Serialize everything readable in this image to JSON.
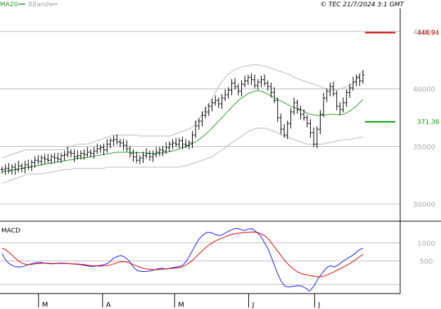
{
  "chart_data": [
    {
      "type": "ohlc",
      "source_label": "© TEC 21/7/2024 3:1 GMT",
      "legend": [
        {
          "label": "MA20",
          "color": "#2a9d2a"
        },
        {
          "label": "BBands",
          "color": "#aaaaaa"
        }
      ],
      "y_ticks": [
        "30000",
        "35000",
        "40000",
        "45000"
      ],
      "y_tick_values": [
        300,
        350,
        400,
        450
      ],
      "ylim": [
        285,
        470
      ],
      "levels": [
        {
          "label": "448.94",
          "value": 448.94,
          "color": "#cc0000"
        },
        {
          "label": "371.36",
          "value": 371.36,
          "color": "#009900"
        }
      ],
      "x_ticks": [
        "M",
        "A",
        "M",
        "J",
        "J"
      ],
      "x_tick_positions": [
        0.105,
        0.265,
        0.445,
        0.63,
        0.795
      ],
      "close": [
        330,
        331,
        329,
        332,
        330,
        333,
        331,
        334,
        332,
        336,
        338,
        337,
        340,
        339,
        338,
        341,
        340,
        339,
        342,
        343,
        345,
        344,
        341,
        342,
        344,
        343,
        345,
        344,
        346,
        348,
        349,
        347,
        352,
        355,
        356,
        354,
        353,
        351,
        348,
        344,
        341,
        338,
        340,
        342,
        344,
        341,
        343,
        345,
        347,
        346,
        349,
        352,
        353,
        352,
        355,
        352,
        351,
        353,
        360,
        368,
        372,
        377,
        380,
        385,
        388,
        390,
        387,
        392,
        395,
        399,
        405,
        402,
        398,
        404,
        407,
        410,
        408,
        403,
        406,
        408,
        405,
        402,
        397,
        390,
        375,
        365,
        360,
        370,
        380,
        388,
        382,
        378,
        375,
        370,
        362,
        352,
        365,
        378,
        392,
        398,
        402,
        396,
        385,
        382,
        388,
        397,
        401,
        406,
        410,
        407,
        412
      ],
      "ma20": [
        328,
        328.5,
        329,
        329.5,
        330,
        330.5,
        331,
        331.5,
        332,
        332.5,
        333,
        333.5,
        334,
        334.5,
        335,
        335.5,
        336,
        336.5,
        337,
        337.5,
        338,
        338.5,
        339,
        339.5,
        340,
        340,
        340.5,
        341,
        341.5,
        342,
        342.5,
        343,
        343.5,
        344,
        344.5,
        345,
        345,
        345,
        345,
        345,
        345,
        344.5,
        344.5,
        344.5,
        344,
        344,
        344,
        344,
        344,
        344.5,
        345,
        345.5,
        346,
        347,
        348,
        349,
        350,
        351,
        352.5,
        354,
        356,
        358,
        360.5,
        363,
        366,
        369,
        372,
        375,
        378,
        381,
        384,
        387,
        390,
        392,
        394,
        396,
        397,
        398,
        398.5,
        398,
        397,
        395.5,
        394,
        392.5,
        391,
        389.5,
        388,
        386.5,
        385,
        384,
        383,
        382,
        380.5,
        379,
        378,
        377.5,
        377,
        377,
        377,
        377.5,
        378,
        378,
        377.5,
        377.5,
        378,
        379,
        381,
        383,
        385,
        388,
        391
      ],
      "bb_upper": [
        340,
        341,
        342,
        343,
        344,
        345,
        346,
        347,
        347,
        347,
        347,
        347,
        347,
        347,
        347,
        347,
        347,
        347,
        347,
        348,
        349,
        350,
        351,
        352,
        352,
        352,
        352,
        353,
        354,
        355,
        356,
        357,
        358,
        359,
        360,
        360,
        360,
        360,
        360,
        360,
        360,
        360,
        359,
        359,
        359,
        359,
        359,
        359,
        359,
        359,
        359,
        359,
        360,
        361,
        362,
        363,
        364,
        365,
        367,
        370,
        374,
        378,
        382,
        387,
        392,
        397,
        402,
        406,
        410,
        413,
        415,
        417,
        418,
        419,
        420,
        420,
        421,
        421,
        421,
        420,
        420,
        419,
        418,
        417,
        416,
        415,
        414,
        413,
        412,
        410,
        409,
        408,
        407,
        406,
        405,
        404,
        403,
        402,
        401,
        400,
        400,
        399,
        399,
        400,
        401,
        402,
        403,
        405,
        408,
        412,
        416
      ],
      "bb_lower": [
        318,
        319,
        320,
        321,
        322,
        323,
        324,
        325,
        326,
        326,
        326,
        326,
        326,
        327,
        327,
        328,
        328,
        329,
        329,
        330,
        330,
        330,
        331,
        331,
        331,
        331,
        331,
        331,
        331,
        331,
        331,
        331,
        332,
        332,
        332,
        332,
        332,
        332,
        332,
        332,
        332,
        332,
        332,
        332,
        332,
        332,
        332,
        332,
        332,
        332,
        332,
        332,
        332,
        332,
        332,
        333,
        333,
        334,
        335,
        336,
        337,
        338,
        339,
        340,
        341,
        343,
        345,
        347,
        349,
        351,
        353,
        355,
        357,
        359,
        361,
        363,
        364,
        365,
        366,
        366,
        366,
        365,
        364,
        363,
        362,
        360,
        359,
        358,
        357,
        356,
        355,
        354,
        353,
        352,
        352,
        352,
        352,
        352,
        352,
        353,
        353,
        354,
        355,
        355,
        356,
        356,
        356,
        357,
        357,
        358,
        358
      ]
    },
    {
      "type": "line",
      "title": "MACD",
      "y_ticks": [
        "500",
        "1000"
      ],
      "y_tick_values": [
        500,
        1000
      ],
      "ylim": [
        -400,
        1500
      ],
      "series": [
        {
          "name": "",
          "color": "#1a1aff",
          "values": [
            700,
            500,
            400,
            350,
            330,
            340,
            380,
            420,
            450,
            460,
            450,
            430,
            420,
            430,
            440,
            440,
            430,
            420,
            410,
            400,
            380,
            360,
            340,
            360,
            380,
            400,
            450,
            560,
            620,
            650,
            600,
            500,
            330,
            230,
            210,
            210,
            220,
            250,
            280,
            300,
            280,
            300,
            320,
            340,
            380,
            500,
            700,
            900,
            1100,
            1220,
            1290,
            1280,
            1230,
            1200,
            1240,
            1310,
            1360,
            1400,
            1380,
            1340,
            1380,
            1390,
            1300,
            1200,
            1000,
            800,
            500,
            200,
            -50,
            -200,
            -220,
            -200,
            -180,
            -190,
            -250,
            -330,
            -200,
            0,
            150,
            300,
            370,
            330,
            390,
            480,
            560,
            620,
            700,
            800,
            850
          ]
        },
        {
          "name": "",
          "color": "#dd0000",
          "values": [
            850,
            800,
            700,
            600,
            500,
            430,
            400,
            400,
            420,
            430,
            440,
            440,
            430,
            430,
            430,
            430,
            430,
            420,
            420,
            410,
            400,
            380,
            370,
            360,
            360,
            370,
            380,
            410,
            450,
            480,
            480,
            450,
            400,
            350,
            310,
            280,
            270,
            260,
            260,
            270,
            280,
            290,
            300,
            310,
            340,
            400,
            480,
            580,
            700,
            800,
            900,
            980,
            1050,
            1100,
            1150,
            1200,
            1230,
            1260,
            1270,
            1280,
            1290,
            1300,
            1290,
            1260,
            1200,
            1100,
            950,
            800,
            650,
            500,
            380,
            280,
            200,
            150,
            120,
            100,
            80,
            60,
            70,
            100,
            150,
            200,
            260,
            320,
            380,
            440,
            520,
            600,
            680
          ]
        }
      ]
    }
  ]
}
